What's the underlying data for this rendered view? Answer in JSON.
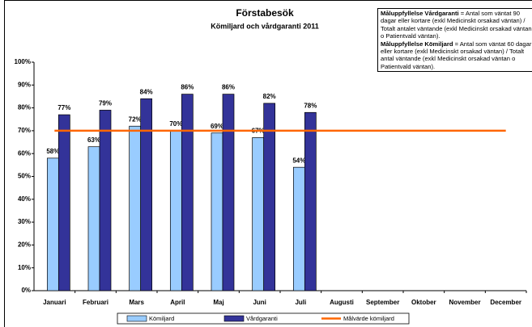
{
  "chart_data": {
    "type": "bar",
    "title": "Förstabesök",
    "subtitle": "Kömiljard och vårdgaranti 2011",
    "categories": [
      "Januari",
      "Februari",
      "Mars",
      "April",
      "Maj",
      "Juni",
      "Juli",
      "Augusti",
      "September",
      "Oktober",
      "November",
      "December"
    ],
    "series": [
      {
        "name": "Kömiljard",
        "color": "#99ccff",
        "type": "bar",
        "values": [
          58,
          63,
          72,
          70,
          69,
          67,
          54,
          null,
          null,
          null,
          null,
          null
        ],
        "value_labels": [
          "58%",
          "63%",
          "72%",
          "70%",
          "69%",
          "67%",
          "54%",
          null,
          null,
          null,
          null,
          null
        ]
      },
      {
        "name": "Vårdgaranti",
        "color": "#333399",
        "type": "bar",
        "values": [
          77,
          79,
          84,
          86,
          86,
          82,
          78,
          null,
          null,
          null,
          null,
          null
        ],
        "value_labels": [
          "77%",
          "79%",
          "84%",
          "86%",
          "86%",
          "82%",
          "78%",
          null,
          null,
          null,
          null,
          null
        ]
      },
      {
        "name": "Målvärde kömiljard",
        "color": "#ff6600",
        "type": "line",
        "values": [
          70,
          70,
          70,
          70,
          70,
          70,
          70,
          70,
          70,
          70,
          70,
          70
        ]
      }
    ],
    "ylim": [
      0,
      100
    ],
    "yticks": [
      {
        "value": 0,
        "label": "0%"
      },
      {
        "value": 10,
        "label": "10%"
      },
      {
        "value": 20,
        "label": "20%"
      },
      {
        "value": 30,
        "label": "30%"
      },
      {
        "value": 40,
        "label": "40%"
      },
      {
        "value": 50,
        "label": "50%"
      },
      {
        "value": 60,
        "label": "60%"
      },
      {
        "value": 70,
        "label": "70%"
      },
      {
        "value": 80,
        "label": "80%"
      },
      {
        "value": 90,
        "label": "90%"
      },
      {
        "value": 100,
        "label": "100%"
      }
    ],
    "grid": false,
    "legend": "bottom",
    "annotation": [
      {
        "bold": "Måluppfyllelse Vårdgaranti",
        "text": "= Antal som väntat 90 dagar eller kortare (exkl Medicinskt orsakad väntan) / Totalt antalet väntande (exkl Medicinskt orsakad väntan o Patientvald väntan)."
      },
      {
        "bold": "Måluppfyllelse Kömiljard",
        "text": "= Antal som väntat 60 dagar eller kortare (exkl Medicinskt orsakad väntan) / Totalt antal väntande (exkl Medicinskt orsakad väntan o Patientvald väntan)."
      }
    ]
  }
}
